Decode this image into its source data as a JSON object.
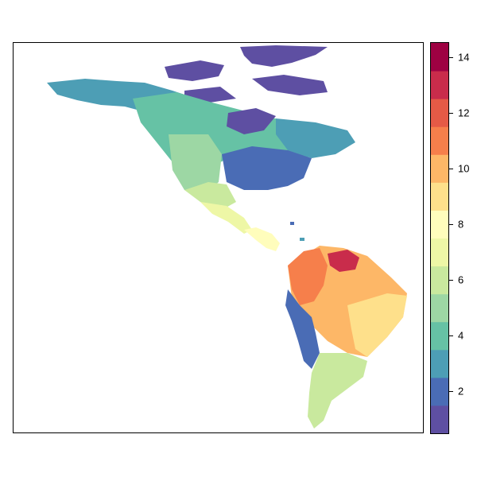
{
  "legend": {
    "min": 0.5,
    "max": 14.5,
    "colors": [
      "#5e4fa2",
      "#4a6cb5",
      "#4d9eb5",
      "#66c2a5",
      "#9dd7a4",
      "#c9e99e",
      "#eef7a6",
      "#fffdbc",
      "#fee08b",
      "#fdb767",
      "#f67f4b",
      "#e55a46",
      "#c92c4b",
      "#9e0142"
    ],
    "ticks": [
      {
        "value": 2,
        "label": "2"
      },
      {
        "value": 4,
        "label": "4"
      },
      {
        "value": 6,
        "label": "6"
      },
      {
        "value": 8,
        "label": "8"
      },
      {
        "value": 10,
        "label": "10"
      },
      {
        "value": 12,
        "label": "12"
      },
      {
        "value": 14,
        "label": "14"
      }
    ]
  },
  "map": {
    "regions": [
      {
        "name": "arctic-islands",
        "color": "#5e4fa2"
      },
      {
        "name": "alaska-yukon",
        "color": "#4d9eb5"
      },
      {
        "name": "boreal-canada",
        "color": "#66c2a5"
      },
      {
        "name": "hudson-bay-rim",
        "color": "#5e4fa2"
      },
      {
        "name": "eastern-canada",
        "color": "#4d9eb5"
      },
      {
        "name": "great-plains",
        "color": "#9dd7a4"
      },
      {
        "name": "eastern-usa",
        "color": "#4a6cb5"
      },
      {
        "name": "southwest-usa",
        "color": "#c9e99e"
      },
      {
        "name": "mexico",
        "color": "#eef7a6"
      },
      {
        "name": "central-america",
        "color": "#fffdbc"
      },
      {
        "name": "amazon-basin",
        "color": "#fdb767"
      },
      {
        "name": "northern-andes",
        "color": "#f67f4b"
      },
      {
        "name": "guiana-hotspot",
        "color": "#c92c4b"
      },
      {
        "name": "brazil-east",
        "color": "#fee08b"
      },
      {
        "name": "andes-west-coast",
        "color": "#4a6cb5"
      },
      {
        "name": "southern-cone",
        "color": "#c9e99e"
      }
    ]
  }
}
